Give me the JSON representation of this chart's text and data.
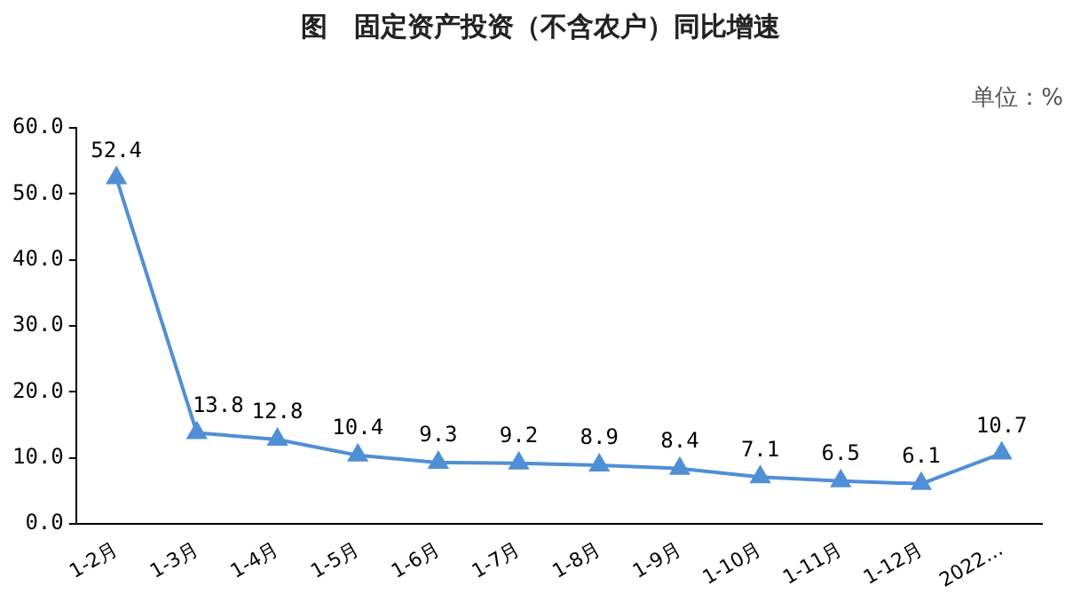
{
  "chart_data": {
    "type": "line",
    "title": "图　固定资产投资（不含农户）同比增速",
    "annotations": [
      "单位：%"
    ],
    "categories": [
      "1-2月",
      "1-3月",
      "1-4月",
      "1-5月",
      "1-6月",
      "1-7月",
      "1-8月",
      "1-9月",
      "1-10月",
      "1-11月",
      "1-12月",
      "2022…"
    ],
    "series": [
      {
        "color": "#4f8fd6",
        "values": [
          52.4,
          13.8,
          12.8,
          10.4,
          9.3,
          9.2,
          8.9,
          8.4,
          7.1,
          6.5,
          6.1,
          10.7
        ]
      }
    ],
    "ylim": [
      0,
      60
    ],
    "yticks": [
      {
        "value": 0,
        "label": "0.0"
      },
      {
        "value": 10,
        "label": "10.0"
      },
      {
        "value": 20,
        "label": "20.0"
      },
      {
        "value": 30,
        "label": "30.0"
      },
      {
        "value": 40,
        "label": "40.0"
      },
      {
        "value": 50,
        "label": "50.0"
      },
      {
        "value": 60,
        "label": "60.0"
      }
    ],
    "grid": false,
    "legend": false,
    "marker": "triangle",
    "line_style": "solid",
    "data_labels": true
  }
}
